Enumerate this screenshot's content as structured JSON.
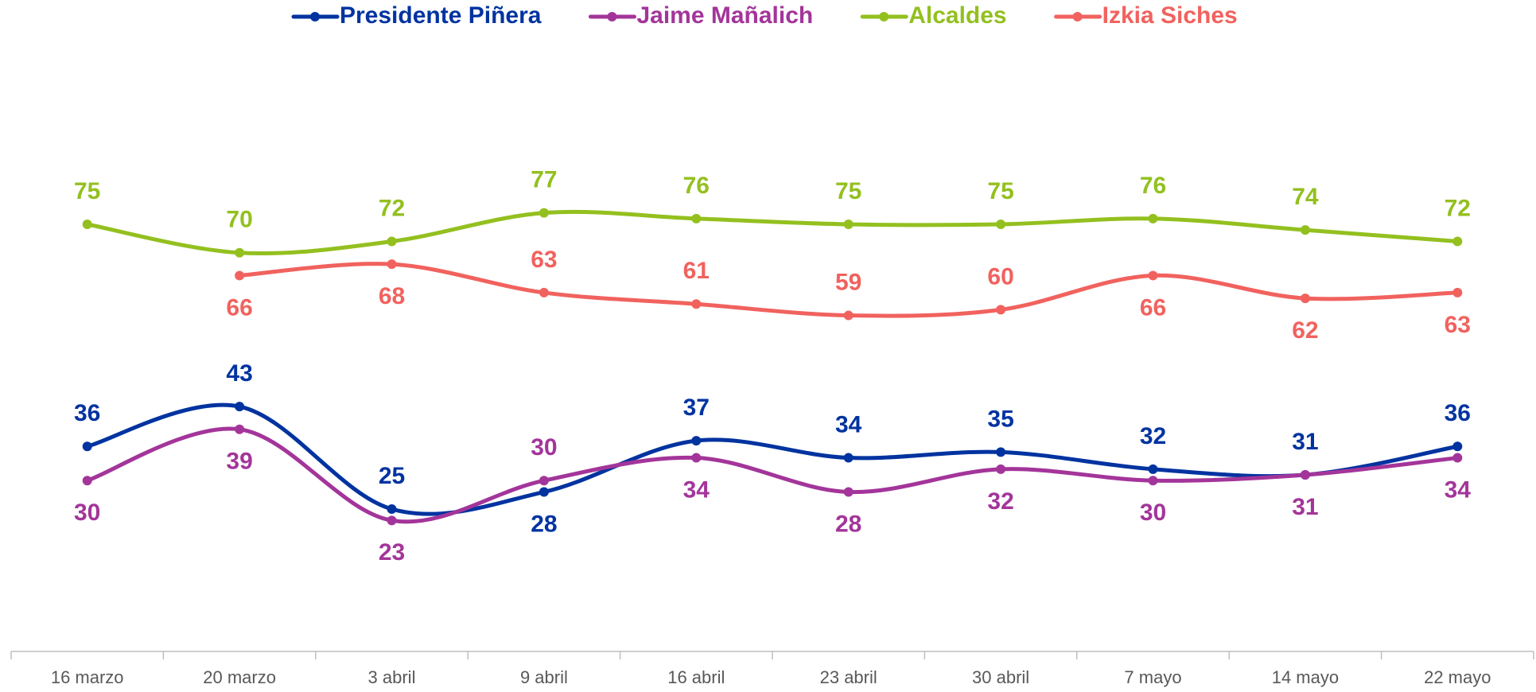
{
  "chart_data": {
    "type": "line",
    "categories": [
      "16 marzo",
      "20 marzo",
      "3 abril",
      "9 abril",
      "16 abril",
      "23 abril",
      "30 abril",
      "7 mayo",
      "14 mayo",
      "22 mayo"
    ],
    "series": [
      {
        "name": "Presidente Piñera",
        "color": "#0033a0",
        "values": [
          36,
          43,
          25,
          28,
          37,
          34,
          35,
          32,
          31,
          36
        ]
      },
      {
        "name": "Jaime Mañalich",
        "color": "#a3359a",
        "values": [
          30,
          39,
          23,
          30,
          34,
          28,
          32,
          30,
          31,
          34
        ]
      },
      {
        "name": "Alcaldes",
        "color": "#93c01f",
        "values": [
          75,
          70,
          72,
          77,
          76,
          75,
          75,
          76,
          74,
          72
        ]
      },
      {
        "name": "Izkia Siches",
        "color": "#f1625e",
        "values": [
          null,
          66,
          68,
          63,
          61,
          59,
          60,
          66,
          62,
          63
        ]
      }
    ],
    "ylim": [
      0,
      100
    ],
    "smooth": true,
    "legend": "top"
  }
}
